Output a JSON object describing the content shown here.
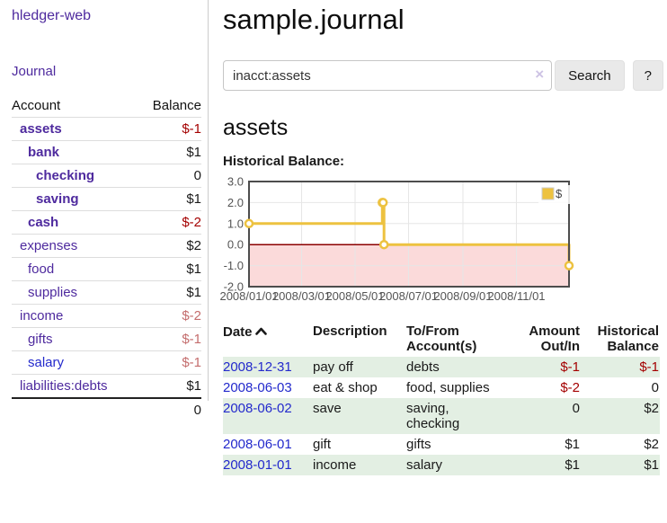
{
  "app": {
    "brand": "hledger-web"
  },
  "sidebar": {
    "journal_link": "Journal",
    "accounts": {
      "headers": {
        "account": "Account",
        "balance": "Balance"
      },
      "rows": [
        {
          "account": "assets",
          "balance": "$-1"
        },
        {
          "account": "bank",
          "balance": "$1"
        },
        {
          "account": "checking",
          "balance": "0"
        },
        {
          "account": "saving",
          "balance": "$1"
        },
        {
          "account": "cash",
          "balance": "$-2"
        },
        {
          "account": "expenses",
          "balance": "$2"
        },
        {
          "account": "food",
          "balance": "$1"
        },
        {
          "account": "supplies",
          "balance": "$1"
        },
        {
          "account": "income",
          "balance": "$-2"
        },
        {
          "account": "gifts",
          "balance": "$-1"
        },
        {
          "account": "salary",
          "balance": "$-1"
        },
        {
          "account": "liabilities:debts",
          "balance": "$1"
        }
      ],
      "total": "0"
    }
  },
  "main": {
    "title": "sample.journal",
    "search": {
      "value": "inacct:assets",
      "clear_icon": "×",
      "search_button": "Search",
      "help_button": "?"
    },
    "account_heading": "assets",
    "chart_label": "Historical Balance:",
    "register": {
      "headers": {
        "date": "Date",
        "description": "Description",
        "tofrom_l1": "To/From",
        "tofrom_l2": "Account(s)",
        "amount_l1": "Amount",
        "amount_l2": "Out/In",
        "hist_l1": "Historical",
        "hist_l2": "Balance"
      },
      "sort_icon": "chevron-up",
      "rows": [
        {
          "date": "2008-12-31",
          "description": "pay off",
          "accounts": "debts",
          "amount": "$-1",
          "balance": "$-1"
        },
        {
          "date": "2008-06-03",
          "description": "eat & shop",
          "accounts": "food, supplies",
          "amount": "$-2",
          "balance": "0"
        },
        {
          "date": "2008-06-02",
          "description": "save",
          "accounts": "saving, checking",
          "amount": "0",
          "balance": "$2"
        },
        {
          "date": "2008-06-01",
          "description": "gift",
          "accounts": "gifts",
          "amount": "$1",
          "balance": "$2"
        },
        {
          "date": "2008-01-01",
          "description": "income",
          "accounts": "salary",
          "amount": "$1",
          "balance": "$1"
        }
      ]
    }
  },
  "colors": {
    "link_purple": "#4e2a9e",
    "link_blue": "#2329cc",
    "negative_strong": "#a40000",
    "negative_dim": "#c46d6d",
    "row_stripe_green": "#e3efe3",
    "series_gold": "#edc240"
  },
  "chart_data": {
    "type": "line",
    "subtype": "step-with-points",
    "title": "Historical Balance",
    "series": [
      {
        "name": "$",
        "color": "#edc240",
        "points": [
          [
            "2008-01-01",
            1
          ],
          [
            "2008-06-01",
            2
          ],
          [
            "2008-06-02",
            2
          ],
          [
            "2008-06-03",
            0
          ],
          [
            "2008-12-31",
            -1
          ]
        ]
      }
    ],
    "x_ticks": [
      "2008/01/01",
      "2008/03/01",
      "2008/05/01",
      "2008/07/01",
      "2008/09/01",
      "2008/11/01"
    ],
    "y_ticks": [
      3.0,
      2.0,
      1.0,
      0.0,
      -1.0,
      -2.0
    ],
    "ylim": [
      -2,
      3
    ],
    "xrange": [
      "2008-01-01",
      "2008-12-31"
    ],
    "grid": true,
    "legend": {
      "label": "$",
      "position": "top-right"
    },
    "negative_region_color": "#fbdada",
    "zero_line_color": "#8b0000",
    "tick_color": "#545454",
    "border_color": "#4d4d4d"
  }
}
